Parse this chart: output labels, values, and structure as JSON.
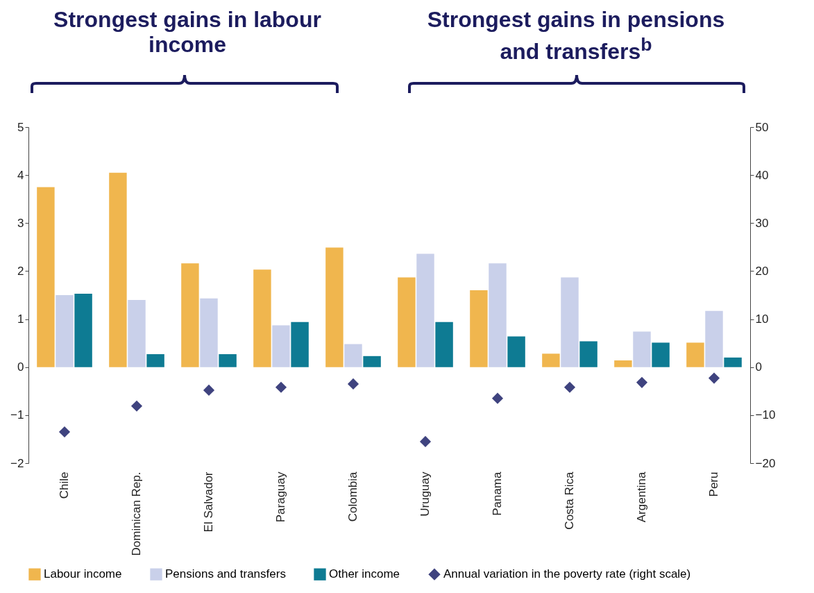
{
  "chart_data": {
    "type": "bar",
    "categories": [
      "Chile",
      "Dominican Rep.",
      "El Salvador",
      "Paraguay",
      "Colombia",
      "Uruguay",
      "Panama",
      "Costa Rica",
      "Argentina",
      "Peru"
    ],
    "series": [
      {
        "name": "Labour income",
        "color": "#f0b64e",
        "values": [
          3.75,
          4.05,
          2.16,
          2.03,
          2.49,
          1.87,
          1.6,
          0.28,
          0.14,
          0.51
        ]
      },
      {
        "name": "Pensions and transfers",
        "color": "#c9d0ea",
        "values": [
          1.5,
          1.4,
          1.43,
          0.87,
          0.48,
          2.36,
          2.16,
          1.87,
          0.74,
          1.17
        ]
      },
      {
        "name": "Other income",
        "color": "#0e7b93",
        "values": [
          1.53,
          0.27,
          0.27,
          0.94,
          0.23,
          0.94,
          0.64,
          0.54,
          0.51,
          0.2
        ]
      },
      {
        "name": "Annual variation in the poverty rate (right scale)",
        "type": "scatter",
        "axis": "y2",
        "marker": "diamond",
        "color": "#3f437f",
        "values": [
          -13.5,
          -8.1,
          -4.8,
          -4.2,
          -3.5,
          -15.5,
          -6.5,
          -4.2,
          -3.2,
          -2.3
        ]
      }
    ],
    "ylim": [
      -2,
      5
    ],
    "yticks": [
      -2,
      -1,
      0,
      1,
      2,
      3,
      4,
      5
    ],
    "y2lim": [
      -20,
      50
    ],
    "y2ticks": [
      -20,
      -10,
      0,
      10,
      20,
      30,
      40,
      50
    ],
    "grid": false,
    "legend": "bottom",
    "annotations": [
      "Strongest gains in labour income",
      "Strongest gains in pensions and transfers$^{b}$"
    ]
  }
}
